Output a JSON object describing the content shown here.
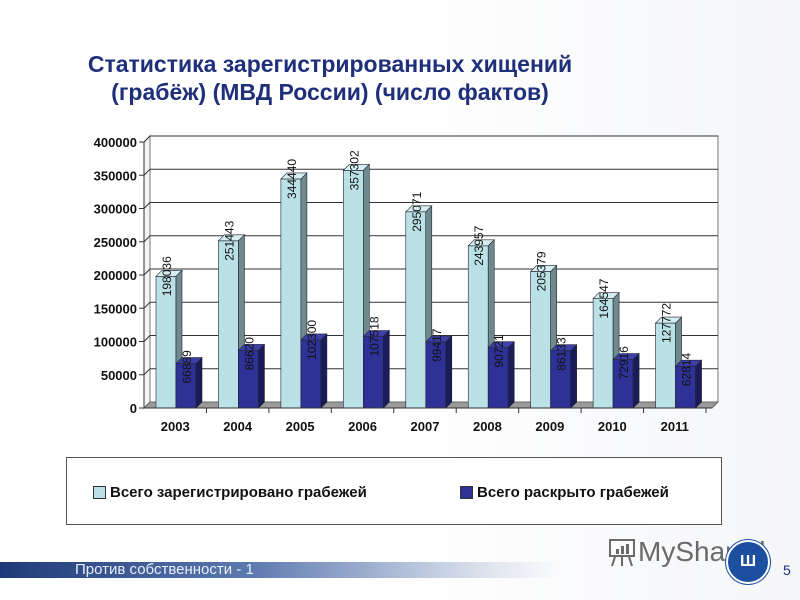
{
  "slide": {
    "title_line1": "Статистика зарегистрированных хищений",
    "title_line2": "(грабёж) (МВД России) (число фактов)",
    "footer_text": "Против собственности - 1",
    "page_number": "5",
    "watermark": "MyShared",
    "seal_glyph": "Ш"
  },
  "colors": {
    "title": "#1f2f7a",
    "registered": "#b9e1e6",
    "registered_side": "#6f8a8c",
    "solved": "#2e3296",
    "solved_side": "#1a1c5a",
    "grid": "#333333"
  },
  "legend": {
    "items": [
      {
        "label": "Всего зарегистрировано грабежей",
        "color": "#b9e1e6"
      },
      {
        "label": "Всего раскрыто грабежей",
        "color": "#2e3296"
      }
    ]
  },
  "chart_data": {
    "type": "bar",
    "title": "Статистика зарегистрированных хищений (грабёж) (МВД России) (число фактов)",
    "xlabel": "",
    "ylabel": "",
    "categories": [
      "2003",
      "2004",
      "2005",
      "2006",
      "2007",
      "2008",
      "2009",
      "2010",
      "2011"
    ],
    "series": [
      {
        "name": "Всего зарегистрировано грабежей",
        "values": [
          198036,
          251443,
          344440,
          357302,
          295071,
          243957,
          205379,
          164547,
          127772
        ]
      },
      {
        "name": "Всего раскрыто грабежей",
        "values": [
          66889,
          86620,
          102300,
          107518,
          99417,
          90721,
          86133,
          72916,
          62814
        ]
      }
    ],
    "ylim": [
      0,
      400000
    ],
    "yticks": [
      0,
      50000,
      100000,
      150000,
      200000,
      250000,
      300000,
      350000,
      400000
    ],
    "ytick_labels": [
      "0",
      "50000",
      "100000",
      "150000",
      "200000",
      "250000",
      "300000",
      "350000",
      "400000"
    ],
    "grid": true,
    "legend_position": "bottom",
    "style": "3d-clustered-column",
    "data_labels": "rotated-vertical"
  }
}
